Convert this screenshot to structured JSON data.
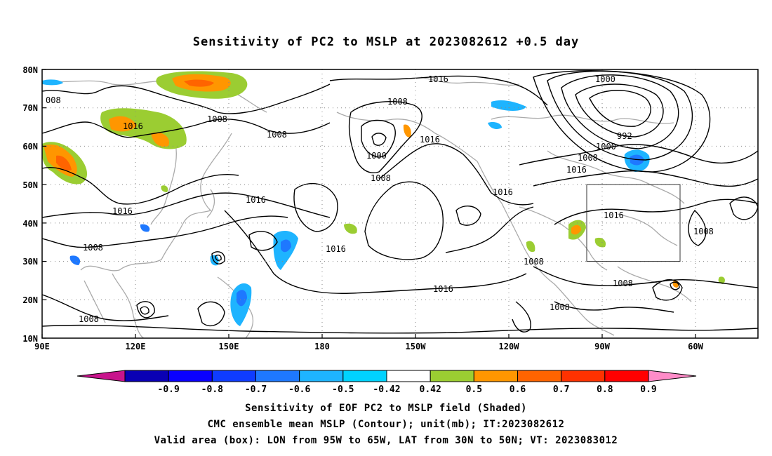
{
  "title": "Sensitivity of PC2 to MSLP at 2023082612 +0.5 day",
  "map": {
    "lat_ticks": [
      "80N",
      "70N",
      "60N",
      "50N",
      "40N",
      "30N",
      "20N",
      "10N"
    ],
    "lon_ticks": [
      "90E",
      "120E",
      "150E",
      "180",
      "150W",
      "120W",
      "90W",
      "60W"
    ],
    "valid_box": {
      "lon_from": "95W",
      "lon_to": "65W",
      "lat_from": "30N",
      "lat_to": "50N"
    },
    "contour_labels": [
      "008",
      "1016",
      "1008",
      "1008",
      "1016",
      "1008",
      "1000",
      "1008",
      "1016",
      "1016",
      "1016",
      "1016",
      "1008",
      "1008",
      "1016",
      "1000",
      "1000",
      "992",
      "1008",
      "1016",
      "1016",
      "1016",
      "1008",
      "1008",
      "1008",
      "1008"
    ]
  },
  "colorbar": {
    "labels": [
      "-0.9",
      "-0.8",
      "-0.7",
      "-0.6",
      "-0.5",
      "-0.42",
      "0.42",
      "0.5",
      "0.6",
      "0.7",
      "0.8",
      "0.9"
    ],
    "colors": [
      "#c8148c",
      "#0a00b4",
      "#0a00ff",
      "#0f3cff",
      "#1e78ff",
      "#1eb4ff",
      "#00d2ff",
      "#ffffff",
      "#9bcd32",
      "#ff9600",
      "#ff6400",
      "#ff3200",
      "#ff0000",
      "#ff8cc8"
    ]
  },
  "captions": [
    "Sensitivity of EOF PC2 to MSLP field (Shaded)",
    "CMC ensemble mean MSLP (Contour); unit(mb); IT:2023082612",
    "Valid area (box): LON from 95W to 65W, LAT from 30N to 50N; VT: 2023083012"
  ]
}
